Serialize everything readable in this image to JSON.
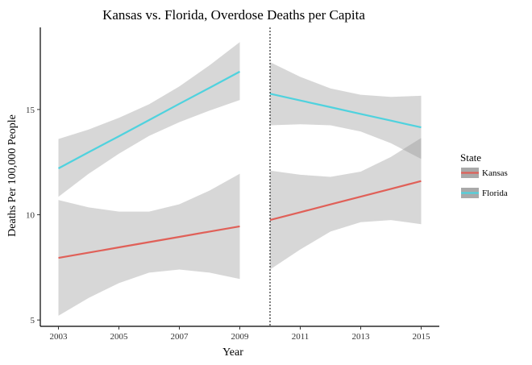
{
  "chart_data": {
    "type": "line",
    "title": "Kansas vs. Florida, Overdose Deaths per Capita",
    "xlabel": "Year",
    "ylabel": "Deaths Per 100,000 People",
    "xlim": [
      2002.4,
      2015.6
    ],
    "ylim": [
      4.7,
      18.9
    ],
    "x_ticks": [
      2003,
      2005,
      2007,
      2009,
      2011,
      2013,
      2015
    ],
    "y_ticks": [
      5,
      10,
      15
    ],
    "vline": 2010,
    "grid": false,
    "legend": {
      "title": "State",
      "position": "right",
      "entries": [
        {
          "label": "Kansas",
          "color": "#e06058"
        },
        {
          "label": "Florida",
          "color": "#4fd2de"
        }
      ]
    },
    "series": [
      {
        "name": "Kansas",
        "color": "#e06058",
        "segments": [
          {
            "x": [
              2003,
              2004,
              2005,
              2006,
              2007,
              2008,
              2009
            ],
            "fit": [
              7.95,
              8.2,
              8.45,
              8.7,
              8.95,
              9.2,
              9.45
            ],
            "lower": [
              5.2,
              6.05,
              6.75,
              7.25,
              7.4,
              7.25,
              6.95
            ],
            "upper": [
              10.7,
              10.35,
              10.15,
              10.15,
              10.5,
              11.15,
              11.95
            ]
          },
          {
            "x": [
              2010,
              2011,
              2012,
              2013,
              2014,
              2015
            ],
            "fit": [
              9.75,
              10.12,
              10.49,
              10.86,
              11.23,
              11.6
            ],
            "lower": [
              7.4,
              8.35,
              9.2,
              9.65,
              9.75,
              9.55
            ],
            "upper": [
              12.1,
              11.9,
              11.8,
              12.05,
              12.75,
              13.65
            ]
          }
        ]
      },
      {
        "name": "Florida",
        "color": "#4fd2de",
        "segments": [
          {
            "x": [
              2003,
              2004,
              2005,
              2006,
              2007,
              2008,
              2009
            ],
            "fit": [
              12.2,
              12.97,
              13.73,
              14.5,
              15.27,
              16.03,
              16.8
            ],
            "lower": [
              10.85,
              11.95,
              12.9,
              13.75,
              14.4,
              14.95,
              15.45
            ],
            "upper": [
              13.6,
              14.05,
              14.6,
              15.25,
              16.1,
              17.1,
              18.2
            ]
          },
          {
            "x": [
              2010,
              2011,
              2012,
              2013,
              2014,
              2015
            ],
            "fit": [
              15.75,
              15.43,
              15.11,
              14.79,
              14.47,
              14.15
            ],
            "lower": [
              14.25,
              14.3,
              14.25,
              13.95,
              13.4,
              12.65
            ],
            "upper": [
              17.25,
              16.55,
              16.0,
              15.7,
              15.6,
              15.65
            ]
          }
        ]
      }
    ]
  }
}
